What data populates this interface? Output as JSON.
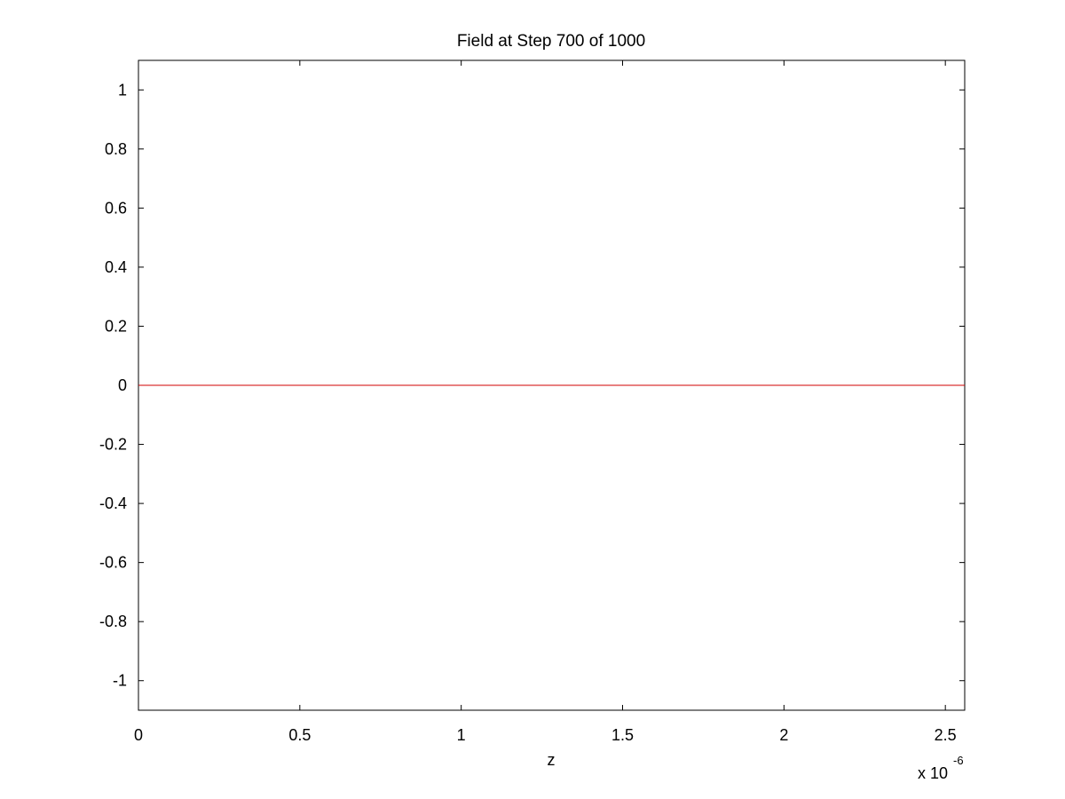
{
  "colors": {
    "background": "#ffffff",
    "axes": "#000000",
    "line": "#d00000"
  },
  "chart_data": {
    "type": "line",
    "title": "Field at Step 700 of 1000",
    "xlabel": "z",
    "ylabel": "",
    "x_multiplier_label": {
      "base": "x 10",
      "exponent": "-6"
    },
    "xlim": [
      0,
      2.56
    ],
    "ylim": [
      -1.1,
      1.1
    ],
    "x_unit_scale": 1e-06,
    "x_ticks": [
      0,
      0.5,
      1,
      1.5,
      2,
      2.5
    ],
    "x_tick_labels": [
      "0",
      "0.5",
      "1",
      "1.5",
      "2",
      "2.5"
    ],
    "y_ticks": [
      1,
      0.8,
      0.6,
      0.4,
      0.2,
      0,
      -0.2,
      -0.4,
      -0.6,
      -0.8,
      -1
    ],
    "y_tick_labels": [
      "1",
      "0.8",
      "0.6",
      "0.4",
      "0.2",
      "0",
      "-0.2",
      "-0.4",
      "-0.6",
      "-0.8",
      "-1"
    ],
    "grid": false,
    "legend": "none",
    "series": [
      {
        "color": "#d00000",
        "x": [
          0,
          0.5,
          1,
          1.5,
          2,
          2.56
        ],
        "y": [
          0,
          0,
          0,
          0,
          0,
          0
        ]
      }
    ]
  }
}
